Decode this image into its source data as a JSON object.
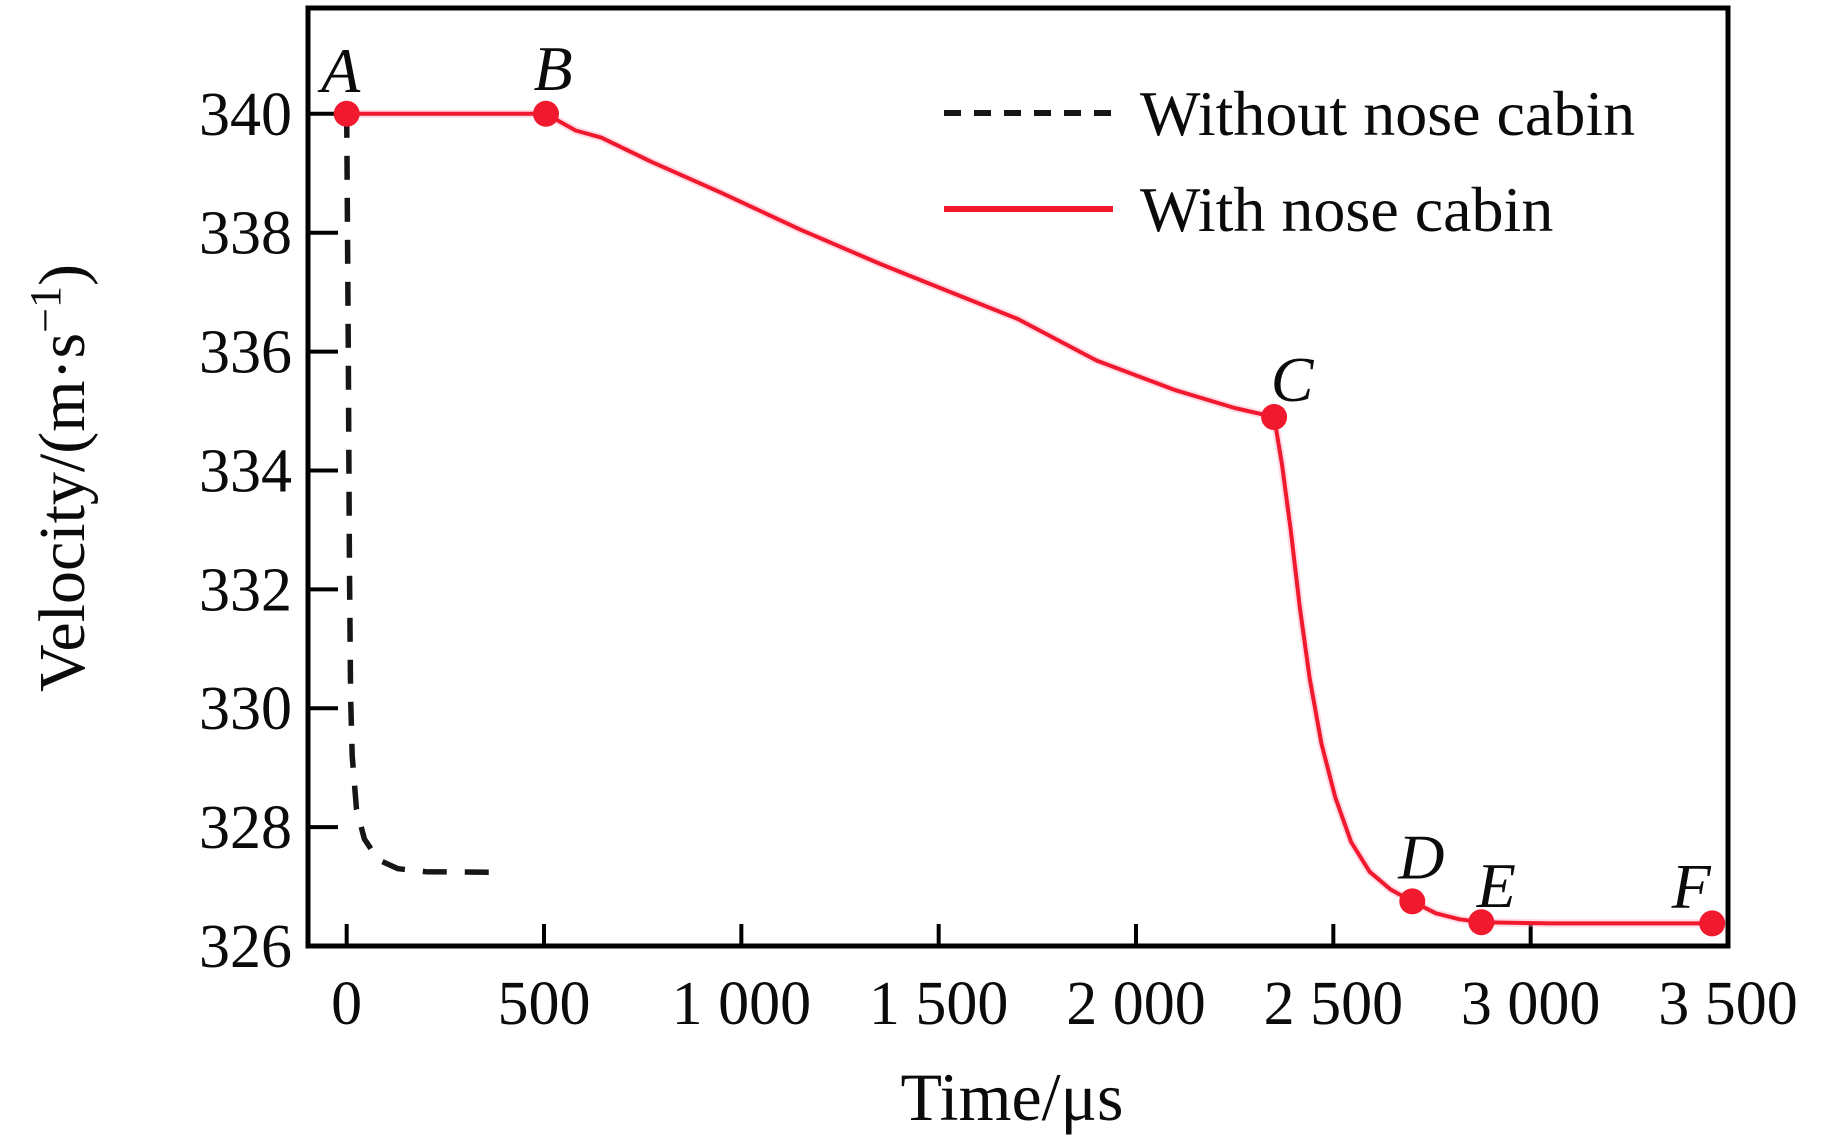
{
  "figure": {
    "description": "Velocity versus time line chart comparing projectile with and without nose cabin",
    "background": "#ffffff"
  },
  "colors": {
    "with_nose_cabin": "#f0192e",
    "with_nose_cabin_halo": "#ffa3ba",
    "without_nose_cabin": "#161616",
    "axis": "#000000",
    "text": "#0b0b0b"
  },
  "chart_data": {
    "type": "line",
    "title": "",
    "xlabel": "Time/μs",
    "ylabel": "Velocity/(m·s⁻¹)",
    "ylabel_parts": {
      "pre": "Velocity/(m·s",
      "sup": "−1",
      "post": ")"
    },
    "xlim": [
      -98,
      3500
    ],
    "ylim": [
      326,
      341.78
    ],
    "grid": false,
    "x_ticks": {
      "values": [
        0,
        500,
        1000,
        1500,
        2000,
        2500,
        3000,
        3500
      ],
      "labels": [
        "0",
        "500",
        "1 000",
        "1 500",
        "2 000",
        "2 500",
        "3 000",
        "3 500"
      ]
    },
    "y_ticks": {
      "values": [
        326,
        328,
        330,
        332,
        334,
        336,
        338,
        340
      ],
      "labels": [
        "326",
        "328",
        "330",
        "332",
        "334",
        "336",
        "338",
        "340"
      ]
    },
    "legend": {
      "position": "top-right",
      "entries": [
        {
          "label": "Without nose cabin",
          "style": "dashed",
          "color": "#161616"
        },
        {
          "label": "With nose cabin",
          "style": "solid",
          "color": "#f0192e"
        }
      ]
    },
    "series": [
      {
        "name": "Without nose cabin",
        "style": "dashed",
        "color": "#161616",
        "width": 5.5,
        "dash": "24 18",
        "points": [
          [
            0,
            340
          ],
          [
            4,
            336
          ],
          [
            7,
            332.5
          ],
          [
            10,
            330.2
          ],
          [
            14,
            329.2
          ],
          [
            25,
            328.3
          ],
          [
            45,
            327.8
          ],
          [
            80,
            327.45
          ],
          [
            130,
            327.3
          ],
          [
            200,
            327.25
          ],
          [
            385,
            327.24
          ]
        ]
      },
      {
        "name": "With nose cabin",
        "style": "solid",
        "color": "#f0192e",
        "width": 4,
        "points": [
          [
            0,
            340
          ],
          [
            505,
            340
          ],
          [
            545,
            339.85
          ],
          [
            580,
            339.72
          ],
          [
            645,
            339.6
          ],
          [
            770,
            339.2
          ],
          [
            950,
            338.67
          ],
          [
            1150,
            338.05
          ],
          [
            1350,
            337.48
          ],
          [
            1530,
            337.0
          ],
          [
            1700,
            336.55
          ],
          [
            1900,
            335.85
          ],
          [
            2100,
            335.35
          ],
          [
            2250,
            335.05
          ],
          [
            2350,
            334.9
          ],
          [
            2370,
            334.1
          ],
          [
            2392,
            333.0
          ],
          [
            2415,
            331.7
          ],
          [
            2440,
            330.5
          ],
          [
            2470,
            329.4
          ],
          [
            2505,
            328.5
          ],
          [
            2545,
            327.75
          ],
          [
            2592,
            327.25
          ],
          [
            2645,
            326.95
          ],
          [
            2700,
            326.75
          ],
          [
            2760,
            326.55
          ],
          [
            2820,
            326.45
          ],
          [
            2875,
            326.4
          ],
          [
            3050,
            326.38
          ],
          [
            3460,
            326.38
          ]
        ],
        "markers": [
          {
            "label": "A",
            "t": 0,
            "v": 340,
            "label_offset": [
              -6,
              -22
            ]
          },
          {
            "label": "B",
            "t": 505,
            "v": 340,
            "label_offset": [
              7,
              -24
            ]
          },
          {
            "label": "C",
            "t": 2350,
            "v": 334.9,
            "label_offset": [
              18,
              -16
            ]
          },
          {
            "label": "D",
            "t": 2700,
            "v": 326.75,
            "label_offset": [
              9,
              -23
            ]
          },
          {
            "label": "E",
            "t": 2875,
            "v": 326.4,
            "label_offset": [
              15,
              -15
            ]
          },
          {
            "label": "F",
            "t": 3460,
            "v": 326.38,
            "label_offset": [
              -21,
              -16
            ]
          }
        ]
      }
    ]
  }
}
